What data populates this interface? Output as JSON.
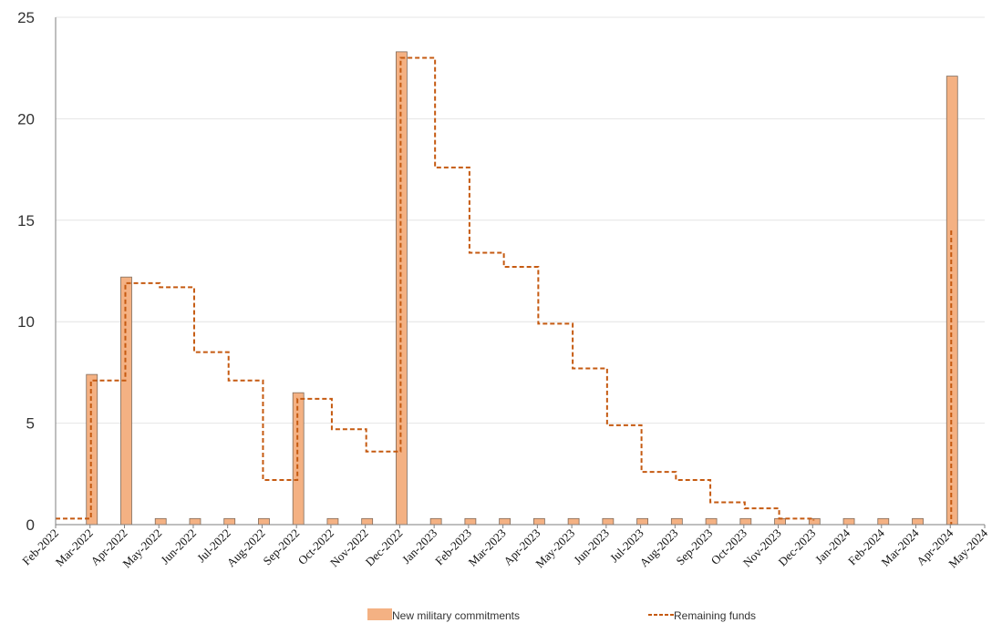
{
  "chart_data": {
    "type": "bar",
    "categories": [
      "Feb-2022",
      "Mar-2022",
      "Apr-2022",
      "May-2022",
      "Jun-2022",
      "Jul-2022",
      "Aug-2022",
      "Sep-2022",
      "Oct-2022",
      "Nov-2022",
      "Dec-2022",
      "Jan-2023",
      "Feb-2023",
      "Mar-2023",
      "Apr-2023",
      "May-2023",
      "Jun-2023",
      "Jul-2023",
      "Aug-2023",
      "Sep-2023",
      "Oct-2023",
      "Nov-2023",
      "Dec-2023",
      "Jan-2024",
      "Feb-2024",
      "Mar-2024",
      "Apr-2024",
      "May-2024"
    ],
    "series": [
      {
        "name": "New military commitments",
        "type": "bar",
        "color": "#f4b183",
        "values": [
          null,
          7.4,
          12.2,
          0.3,
          0.3,
          0.3,
          0.3,
          6.5,
          0.3,
          0.3,
          23.3,
          0.3,
          0.3,
          0.3,
          0.3,
          0.3,
          0.3,
          0.3,
          0.3,
          0.3,
          0.3,
          0.3,
          0.3,
          0.3,
          0.3,
          0.3,
          22.1,
          null
        ]
      },
      {
        "name": "Remaining funds",
        "type": "step",
        "color": "#c55a11",
        "values": [
          0.3,
          7.1,
          11.9,
          11.7,
          8.5,
          7.1,
          2.2,
          6.2,
          4.7,
          3.6,
          23.0,
          17.6,
          13.4,
          12.7,
          9.9,
          7.7,
          4.9,
          2.6,
          2.2,
          1.1,
          0.8,
          0.3,
          0.2,
          null,
          null,
          null,
          14.5,
          null
        ]
      }
    ],
    "ylim": [
      0,
      25
    ],
    "yticks": [
      "0",
      "5",
      "10",
      "15",
      "20",
      "25"
    ],
    "grid": true,
    "legend_position": "bottom"
  }
}
